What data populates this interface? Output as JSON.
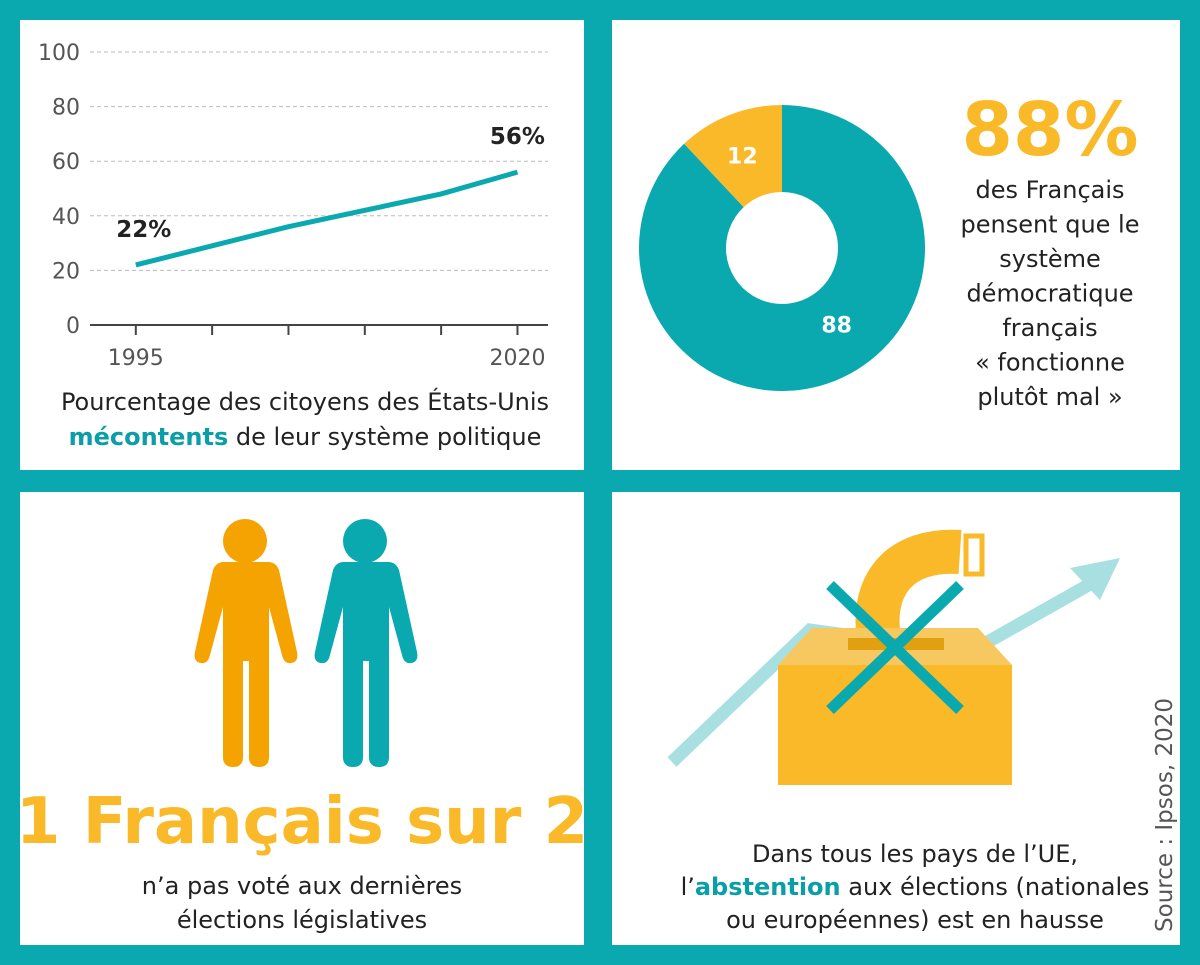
{
  "chart_data": [
    {
      "type": "line",
      "x": [
        1995,
        2000,
        2005,
        2010,
        2015,
        2020
      ],
      "values": [
        22,
        29,
        36,
        42,
        48,
        56
      ],
      "value_labels": [
        "22%",
        null,
        null,
        null,
        null,
        "56%"
      ],
      "color": "#0aa9b0",
      "xlim": [
        1992,
        2022
      ],
      "xticks": [
        1995,
        2020
      ],
      "minor_xticks": [
        2000,
        2005,
        2010,
        2015
      ],
      "ylim": [
        0,
        100
      ],
      "yticks": [
        0,
        20,
        40,
        60,
        80,
        100
      ],
      "grid": true,
      "caption": [
        "Pourcentage des citoyens des États-Unis",
        "mécontents",
        " de leur système politique"
      ]
    },
    {
      "type": "pie",
      "donut": true,
      "values": [
        88,
        12
      ],
      "colors": [
        "#0aa9b0",
        "#f9b928"
      ],
      "headline": "88%",
      "description": [
        "des Français",
        "pensent que le",
        "système",
        "démocratique",
        "français",
        "« fonctionne",
        "plutôt mal »"
      ]
    }
  ],
  "vote": {
    "headline": "1 Français sur 2",
    "text": [
      "n’a pas voté aux dernières",
      "élections législatives"
    ]
  },
  "abstention": {
    "text": [
      "Dans tous les pays de l’UE,",
      "l’",
      "abstention",
      " aux élections (nationales",
      "ou européennes) est en hausse"
    ]
  },
  "source": "Source : Ipsos, 2020"
}
